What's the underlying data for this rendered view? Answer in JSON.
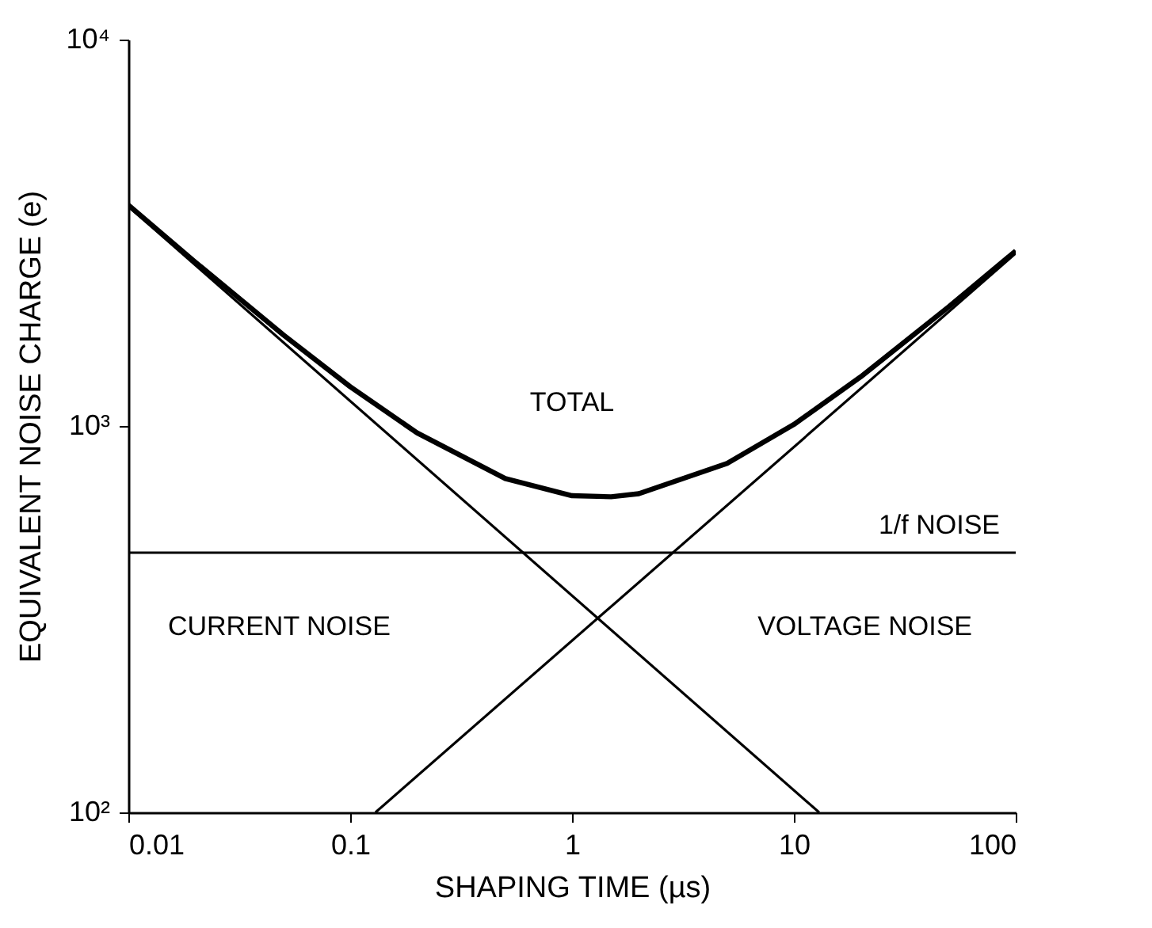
{
  "chart_data": {
    "type": "line",
    "xlabel": "SHAPING TIME (µs)",
    "ylabel": "EQUIVALENT NOISE CHARGE (e)",
    "log": "xy",
    "xlim": [
      0.01,
      100
    ],
    "xticks": [
      0.01,
      0.1,
      1,
      10,
      100
    ],
    "ylim": [
      100,
      10000
    ],
    "yticks": [
      {
        "value": 100,
        "label": "10²"
      },
      {
        "value": 1000,
        "label": "10³"
      },
      {
        "value": 10000,
        "label": "10⁴"
      }
    ],
    "grid": false,
    "line_style": "solid",
    "marker": "none",
    "series": [
      {
        "color": "#000000",
        "x": [
          0.01,
          0.02,
          0.05,
          0.1,
          0.2,
          0.5,
          1,
          1.5,
          2,
          5,
          10,
          20,
          50,
          100
        ],
        "values": [
          3730,
          2658,
          1721,
          1264,
          960,
          731,
          660,
          656,
          668,
          800,
          1009,
          1340,
          2036,
          2839
        ]
      },
      {
        "color": "#000000",
        "x": [
          0.01,
          13
        ],
        "values": [
          3700,
          100
        ]
      },
      {
        "color": "#000000",
        "x": [
          0.13,
          100
        ],
        "values": [
          100,
          2800
        ]
      }
    ],
    "ref_lines": [
      {
        "axis": "y",
        "value": 470,
        "label": "1/f NOISE",
        "color": "#000000"
      }
    ],
    "annotations": [
      "TOTAL",
      "CURRENT NOISE",
      "VOLTAGE NOISE"
    ]
  }
}
